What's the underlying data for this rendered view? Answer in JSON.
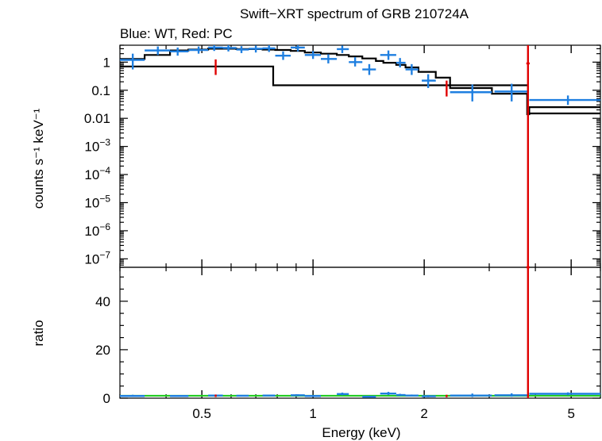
{
  "chart_data": {
    "type": "scatter",
    "title": "Swift−XRT spectrum of GRB 210724A",
    "subtitle": "Blue: WT, Red: PC",
    "xlabel": "Energy (keV)",
    "x_scale": "log",
    "xlim": [
      0.3,
      6.0
    ],
    "x_ticks": [
      {
        "value": 0.5,
        "label": "0.5"
      },
      {
        "value": 1,
        "label": "1"
      },
      {
        "value": 2,
        "label": "2"
      },
      {
        "value": 5,
        "label": "5"
      }
    ],
    "top_panel": {
      "ylabel": "counts s⁻¹ keV⁻¹",
      "y_scale": "log",
      "ylim": [
        5e-08,
        4
      ],
      "y_ticks": [
        {
          "value": 1,
          "label": "1"
        },
        {
          "value": 0.1,
          "label": "0.1"
        },
        {
          "value": 0.01,
          "label": "0.01"
        },
        {
          "value": 0.001,
          "base": "10",
          "exp": "−3"
        },
        {
          "value": 0.0001,
          "base": "10",
          "exp": "−4"
        },
        {
          "value": 1e-05,
          "base": "10",
          "exp": "−5"
        },
        {
          "value": 1e-06,
          "base": "10",
          "exp": "−6"
        },
        {
          "value": 1e-07,
          "base": "10",
          "exp": "−7"
        }
      ],
      "series": [
        {
          "color": "#1f7fe0",
          "points": [
            {
              "x": 0.325,
              "xlo": 0.3,
              "xhi": 0.35,
              "y": 1.2,
              "ylo": 0.55,
              "yhi": 2.0
            },
            {
              "x": 0.38,
              "xlo": 0.35,
              "xhi": 0.41,
              "y": 2.6,
              "ylo": 1.8,
              "yhi": 3.6
            },
            {
              "x": 0.43,
              "xlo": 0.41,
              "xhi": 0.46,
              "y": 2.4,
              "ylo": 1.7,
              "yhi": 3.3
            },
            {
              "x": 0.49,
              "xlo": 0.46,
              "xhi": 0.52,
              "y": 2.7,
              "ylo": 2.0,
              "yhi": 3.6
            },
            {
              "x": 0.54,
              "xlo": 0.52,
              "xhi": 0.57,
              "y": 3.3,
              "ylo": 2.5,
              "yhi": 4.0
            },
            {
              "x": 0.59,
              "xlo": 0.57,
              "xhi": 0.62,
              "y": 3.2,
              "ylo": 2.4,
              "yhi": 4.0
            },
            {
              "x": 0.64,
              "xlo": 0.62,
              "xhi": 0.67,
              "y": 2.8,
              "ylo": 2.1,
              "yhi": 3.7
            },
            {
              "x": 0.7,
              "xlo": 0.67,
              "xhi": 0.73,
              "y": 3.0,
              "ylo": 2.2,
              "yhi": 3.9
            },
            {
              "x": 0.76,
              "xlo": 0.73,
              "xhi": 0.79,
              "y": 3.1,
              "ylo": 2.3,
              "yhi": 4.0
            },
            {
              "x": 0.83,
              "xlo": 0.79,
              "xhi": 0.87,
              "y": 1.7,
              "ylo": 1.2,
              "yhi": 2.4
            },
            {
              "x": 0.91,
              "xlo": 0.87,
              "xhi": 0.95,
              "y": 3.3,
              "ylo": 2.4,
              "yhi": 4.0
            },
            {
              "x": 1.0,
              "xlo": 0.95,
              "xhi": 1.05,
              "y": 1.8,
              "ylo": 1.3,
              "yhi": 2.5
            },
            {
              "x": 1.1,
              "xlo": 1.05,
              "xhi": 1.16,
              "y": 1.3,
              "ylo": 0.9,
              "yhi": 1.9
            },
            {
              "x": 1.2,
              "xlo": 1.16,
              "xhi": 1.25,
              "y": 2.9,
              "ylo": 2.1,
              "yhi": 3.9
            },
            {
              "x": 1.3,
              "xlo": 1.25,
              "xhi": 1.36,
              "y": 1.0,
              "ylo": 0.7,
              "yhi": 1.5
            },
            {
              "x": 1.42,
              "xlo": 1.36,
              "xhi": 1.48,
              "y": 0.55,
              "ylo": 0.35,
              "yhi": 0.85
            },
            {
              "x": 1.6,
              "xlo": 1.52,
              "xhi": 1.68,
              "y": 1.8,
              "ylo": 1.2,
              "yhi": 2.6
            },
            {
              "x": 1.72,
              "xlo": 1.68,
              "xhi": 1.78,
              "y": 0.95,
              "ylo": 0.65,
              "yhi": 1.4
            },
            {
              "x": 1.85,
              "xlo": 1.78,
              "xhi": 1.93,
              "y": 0.55,
              "ylo": 0.35,
              "yhi": 0.85
            },
            {
              "x": 2.05,
              "xlo": 1.97,
              "xhi": 2.15,
              "y": 0.22,
              "ylo": 0.12,
              "yhi": 0.37
            },
            {
              "x": 2.7,
              "xlo": 2.35,
              "xhi": 3.05,
              "y": 0.085,
              "ylo": 0.04,
              "yhi": 0.16
            },
            {
              "x": 3.45,
              "xlo": 3.1,
              "xhi": 3.8,
              "y": 0.09,
              "ylo": 0.04,
              "yhi": 0.17
            },
            {
              "x": 4.9,
              "xlo": 3.85,
              "xhi": 6.0,
              "y": 0.045,
              "ylo": 0.03,
              "yhi": 0.065
            }
          ]
        },
        {
          "color": "#e00000",
          "points": [
            {
              "x": 0.545,
              "xlo": 0.545,
              "xhi": 0.545,
              "y": 0.75,
              "ylo": 0.35,
              "yhi": 1.25
            },
            {
              "x": 2.3,
              "xlo": 2.3,
              "xhi": 2.3,
              "y": 0.14,
              "ylo": 0.06,
              "yhi": 0.22
            },
            {
              "x": 3.82,
              "xlo": 3.78,
              "xhi": 3.86,
              "y": 0.9,
              "ylo": 5e-08,
              "yhi": 4.0
            }
          ]
        }
      ],
      "models": [
        {
          "color": "#000000",
          "steps": [
            [
              0.3,
              1.3
            ],
            [
              0.35,
              1.8
            ],
            [
              0.41,
              2.6
            ],
            [
              0.46,
              2.8
            ],
            [
              0.52,
              3.0
            ],
            [
              0.57,
              3.0
            ],
            [
              0.62,
              2.9
            ],
            [
              0.67,
              2.9
            ],
            [
              0.73,
              2.8
            ],
            [
              0.79,
              2.7
            ],
            [
              0.87,
              2.5
            ],
            [
              0.95,
              2.2
            ],
            [
              1.05,
              2.0
            ],
            [
              1.16,
              1.8
            ],
            [
              1.25,
              1.6
            ],
            [
              1.36,
              1.35
            ],
            [
              1.48,
              1.1
            ],
            [
              1.55,
              0.95
            ],
            [
              1.68,
              0.8
            ],
            [
              1.78,
              0.65
            ],
            [
              1.93,
              0.45
            ],
            [
              2.15,
              0.28
            ],
            [
              2.35,
              0.12
            ],
            [
              3.05,
              0.075
            ],
            [
              3.8,
              0.014
            ],
            [
              3.85,
              0.025
            ],
            [
              6.0,
              0.025
            ]
          ]
        },
        {
          "color": "#000000",
          "steps": [
            [
              0.3,
              0.7
            ],
            [
              0.78,
              0.15
            ],
            [
              3.82,
              0.015
            ],
            [
              6.0,
              0.015
            ]
          ]
        }
      ]
    },
    "bottom_panel": {
      "ylabel": "ratio",
      "y_scale": "linear",
      "ylim": [
        0,
        54
      ],
      "y_ticks": [
        {
          "value": 0,
          "label": "0"
        },
        {
          "value": 20,
          "label": "20"
        },
        {
          "value": 40,
          "label": "40"
        }
      ],
      "reference_line": {
        "y": 1,
        "color": "#22cc22"
      },
      "series": [
        {
          "color": "#1f7fe0",
          "points": [
            {
              "x": 0.325,
              "xlo": 0.3,
              "xhi": 0.35,
              "y": 0.9,
              "ylo": 0.5,
              "yhi": 1.4
            },
            {
              "x": 0.43,
              "xlo": 0.41,
              "xhi": 0.46,
              "y": 0.9,
              "ylo": 0.6,
              "yhi": 1.2
            },
            {
              "x": 0.54,
              "xlo": 0.52,
              "xhi": 0.57,
              "y": 1.1,
              "ylo": 0.8,
              "yhi": 1.4
            },
            {
              "x": 0.64,
              "xlo": 0.62,
              "xhi": 0.67,
              "y": 1.0,
              "ylo": 0.7,
              "yhi": 1.3
            },
            {
              "x": 0.76,
              "xlo": 0.73,
              "xhi": 0.79,
              "y": 1.1,
              "ylo": 0.8,
              "yhi": 1.4
            },
            {
              "x": 0.91,
              "xlo": 0.87,
              "xhi": 0.95,
              "y": 1.2,
              "ylo": 0.9,
              "yhi": 1.6
            },
            {
              "x": 1.0,
              "xlo": 0.95,
              "xhi": 1.05,
              "y": 0.9,
              "ylo": 0.6,
              "yhi": 1.2
            },
            {
              "x": 1.2,
              "xlo": 1.16,
              "xhi": 1.25,
              "y": 1.7,
              "ylo": 1.2,
              "yhi": 2.3
            },
            {
              "x": 1.42,
              "xlo": 1.36,
              "xhi": 1.48,
              "y": 0.6,
              "ylo": 0.3,
              "yhi": 0.9
            },
            {
              "x": 1.6,
              "xlo": 1.52,
              "xhi": 1.68,
              "y": 1.9,
              "ylo": 1.3,
              "yhi": 2.6
            },
            {
              "x": 1.72,
              "xlo": 1.68,
              "xhi": 1.78,
              "y": 1.3,
              "ylo": 0.9,
              "yhi": 1.8
            },
            {
              "x": 1.85,
              "xlo": 1.78,
              "xhi": 1.93,
              "y": 1.1,
              "ylo": 0.7,
              "yhi": 1.5
            },
            {
              "x": 2.05,
              "xlo": 1.97,
              "xhi": 2.15,
              "y": 0.8,
              "ylo": 0.4,
              "yhi": 1.3
            },
            {
              "x": 2.7,
              "xlo": 2.35,
              "xhi": 3.05,
              "y": 1.1,
              "ylo": 0.5,
              "yhi": 1.9
            },
            {
              "x": 3.45,
              "xlo": 3.1,
              "xhi": 3.8,
              "y": 1.2,
              "ylo": 0.6,
              "yhi": 2.0
            },
            {
              "x": 4.9,
              "xlo": 3.85,
              "xhi": 6.0,
              "y": 1.8,
              "ylo": 1.2,
              "yhi": 2.4
            }
          ]
        },
        {
          "color": "#e00000",
          "points": [
            {
              "x": 0.545,
              "xlo": 0.545,
              "xhi": 0.545,
              "y": 1.0,
              "ylo": 0.5,
              "yhi": 1.5
            },
            {
              "x": 2.3,
              "xlo": 2.3,
              "xhi": 2.3,
              "y": 0.9,
              "ylo": 0.4,
              "yhi": 1.4
            },
            {
              "x": 3.82,
              "xlo": 3.78,
              "xhi": 3.86,
              "y": 54,
              "ylo": 0,
              "yhi": 54
            }
          ]
        }
      ]
    }
  }
}
